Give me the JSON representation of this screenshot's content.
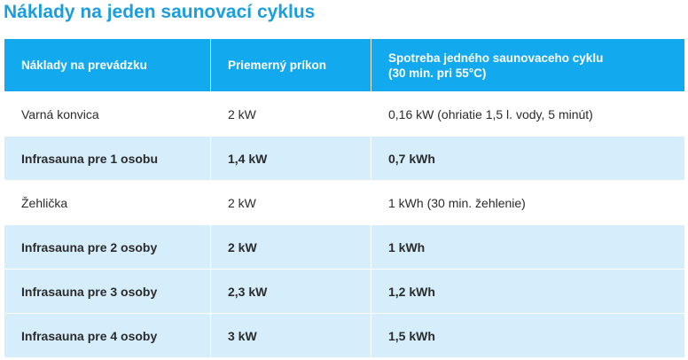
{
  "title": "Náklady na jeden saunovací cyklus",
  "table": {
    "header": [
      "Náklady na prevádzku",
      "Priemerný príkon",
      "Spotreba jedného saunovaceho cyklu\n(30 min. pri 55°C)"
    ],
    "rows": [
      [
        "Varná konvica",
        "2 kW",
        "0,16 kW (ohriatie 1,5 l. vody, 5 minút)"
      ],
      [
        "Infrasauna pre 1 osobu",
        "1,4 kW",
        "0,7 kWh"
      ],
      [
        "Žehlička",
        "2 kW",
        "1 kWh (30 min. žehlenie)"
      ],
      [
        "Infrasauna pre 2 osoby",
        "2 kW",
        "1 kWh"
      ],
      [
        "Infrasauna pre 3 osoby",
        "2,3 kW",
        "1,2 kWh"
      ],
      [
        "Infrasauna pre 4 osoby",
        "3 kW",
        "1,5 kWh"
      ]
    ]
  }
}
